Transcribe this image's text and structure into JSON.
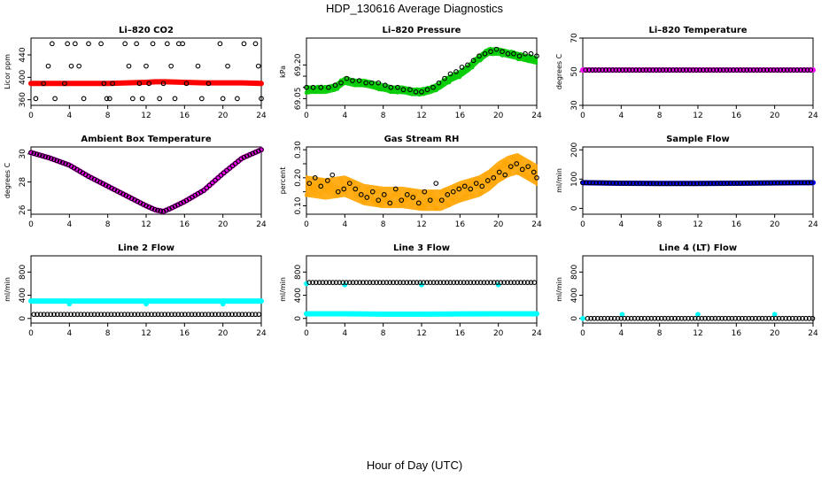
{
  "page": {
    "title": "HDP_130616  Average Diagnostics",
    "xlabel": "Hour of Day (UTC)"
  },
  "colors": {
    "black": "#000000",
    "red": "#ff0000",
    "green": "#00cc00",
    "magenta": "#ff00ff",
    "orange": "#ffa500",
    "blue": "#0000ff",
    "cyan": "#00ffff"
  },
  "chart_data": [
    {
      "type": "scatter",
      "title": "Li–820 CO2",
      "ylabel": "Licor ppm",
      "xlim": [
        0,
        24
      ],
      "ylim": [
        350,
        470
      ],
      "xticks": [
        0,
        4,
        8,
        12,
        16,
        20,
        24
      ],
      "yticks": [
        360,
        400,
        440
      ],
      "series": [
        {
          "color": "#ff0000",
          "style": "dense",
          "x": [
            0,
            2,
            4,
            6,
            8,
            10,
            12,
            13,
            14,
            16,
            18,
            20,
            22,
            24
          ],
          "y": [
            389,
            389,
            389,
            389,
            389,
            390,
            391,
            392,
            392,
            391,
            390,
            390,
            390,
            389
          ]
        },
        {
          "color": "#000000",
          "style": "circle",
          "x": [
            0.5,
            1.3,
            1.8,
            2.2,
            2.5,
            3.5,
            3.8,
            4.2,
            4.6,
            5.0,
            5.5,
            6.0,
            7.3,
            7.6,
            7.9,
            8.2,
            8.5,
            9.8,
            10.2,
            10.6,
            11.0,
            11.3,
            11.6,
            12.0,
            12.3,
            12.7,
            13.4,
            13.8,
            14.2,
            14.6,
            15.0,
            15.4,
            15.8,
            16.2,
            17.4,
            17.8,
            18.5,
            19.7,
            20.0,
            20.5,
            21.5,
            22.2,
            23.4,
            23.7,
            24.0
          ],
          "y": [
            362,
            389,
            420,
            460,
            362,
            389,
            460,
            420,
            460,
            420,
            362,
            460,
            460,
            389,
            362,
            362,
            389,
            460,
            420,
            362,
            460,
            389,
            362,
            420,
            389,
            460,
            362,
            389,
            460,
            420,
            362,
            460,
            460,
            389,
            420,
            362,
            389,
            460,
            362,
            420,
            362,
            460,
            460,
            420,
            362
          ]
        }
      ]
    },
    {
      "type": "scatter",
      "title": "Li–820 Pressure",
      "ylabel": "kPa",
      "xlim": [
        0,
        24
      ],
      "ylim": [
        69.02,
        69.32
      ],
      "xticks": [
        0,
        4,
        8,
        12,
        16,
        20,
        24
      ],
      "yticks": [
        69.05,
        69.1,
        69.15,
        69.2
      ],
      "ytickLabels": [
        "69.05",
        "",
        "",
        "69.20"
      ],
      "series": [
        {
          "color": "#00cc00",
          "style": "band",
          "width": 0.03,
          "x": [
            0,
            1,
            2,
            3,
            4,
            5,
            6,
            7,
            8,
            9,
            10,
            11,
            12,
            13,
            14,
            15,
            16,
            17,
            18,
            19,
            20,
            21,
            22,
            23,
            24
          ],
          "y": [
            69.09,
            69.09,
            69.09,
            69.1,
            69.13,
            69.12,
            69.12,
            69.11,
            69.1,
            69.09,
            69.09,
            69.08,
            69.08,
            69.09,
            69.11,
            69.14,
            69.16,
            69.19,
            69.23,
            69.26,
            69.26,
            69.25,
            69.24,
            69.23,
            69.22
          ]
        },
        {
          "color": "#000000",
          "style": "circle",
          "x": [
            0,
            0.7,
            1.5,
            2.3,
            3.0,
            3.6,
            4.2,
            4.8,
            5.5,
            6.2,
            6.8,
            7.5,
            8.2,
            8.8,
            9.5,
            10.1,
            10.8,
            11.4,
            12.0,
            12.6,
            13.2,
            13.8,
            14.4,
            15.0,
            15.6,
            16.2,
            16.8,
            17.4,
            18.0,
            18.6,
            19.2,
            19.8,
            20.4,
            21.0,
            21.6,
            22.2,
            22.8,
            23.4,
            24.0
          ],
          "y": [
            69.1,
            69.1,
            69.1,
            69.1,
            69.11,
            69.12,
            69.14,
            69.13,
            69.13,
            69.12,
            69.12,
            69.12,
            69.11,
            69.1,
            69.1,
            69.09,
            69.09,
            69.08,
            69.08,
            69.09,
            69.1,
            69.12,
            69.14,
            69.16,
            69.17,
            69.19,
            69.2,
            69.22,
            69.24,
            69.25,
            69.26,
            69.27,
            69.26,
            69.25,
            69.25,
            69.24,
            69.25,
            69.25,
            69.24
          ]
        }
      ]
    },
    {
      "type": "scatter",
      "title": "Li–820 Temperature",
      "ylabel": "degrees C",
      "xlim": [
        0,
        24
      ],
      "ylim": [
        30,
        70
      ],
      "xticks": [
        0,
        4,
        8,
        12,
        16,
        20,
        24
      ],
      "yticks": [
        30,
        50,
        70
      ],
      "series": [
        {
          "color": "#ff00ff",
          "style": "dense",
          "x": [
            0,
            4,
            8,
            12,
            16,
            20,
            24
          ],
          "y": [
            51,
            51,
            51,
            51,
            51,
            51,
            51
          ]
        },
        {
          "color": "#000000",
          "style": "circle",
          "every": 0.35,
          "x": [
            0.3,
            24
          ],
          "y": [
            51,
            51
          ]
        }
      ]
    },
    {
      "type": "scatter",
      "title": "Ambient Box Temperature",
      "ylabel": "degrees C",
      "xlim": [
        0,
        24
      ],
      "ylim": [
        25.7,
        30.5
      ],
      "xticks": [
        0,
        4,
        8,
        12,
        16,
        20,
        24
      ],
      "yticks": [
        26,
        28,
        30
      ],
      "series": [
        {
          "color": "#ff00ff",
          "style": "dense",
          "x": [
            0,
            2,
            4,
            6,
            8,
            10,
            12,
            13,
            13.8,
            14.5,
            16,
            18,
            20,
            22,
            24
          ],
          "y": [
            30.1,
            29.7,
            29.2,
            28.4,
            27.7,
            27.0,
            26.3,
            26.0,
            25.9,
            26.1,
            26.6,
            27.4,
            28.6,
            29.7,
            30.3
          ]
        },
        {
          "color": "#000000",
          "style": "circle",
          "every": 0.3,
          "x": [
            0,
            2,
            4,
            6,
            8,
            10,
            12,
            13,
            13.8,
            14.5,
            16,
            18,
            20,
            22,
            24
          ],
          "y": [
            30.1,
            29.7,
            29.2,
            28.4,
            27.7,
            27.0,
            26.3,
            26.0,
            25.9,
            26.1,
            26.6,
            27.4,
            28.6,
            29.7,
            30.3
          ]
        }
      ]
    },
    {
      "type": "scatter",
      "title": "Gas Stream RH",
      "ylabel": "percent",
      "xlim": [
        0,
        24
      ],
      "ylim": [
        0.07,
        0.31
      ],
      "xticks": [
        0,
        4,
        8,
        12,
        16,
        20,
        24
      ],
      "yticks": [
        0.1,
        0.15,
        0.2,
        0.25,
        0.3
      ],
      "ytickLabels": [
        "0.10",
        "",
        "0.20",
        "",
        "0.30"
      ],
      "series": [
        {
          "color": "#ffa500",
          "style": "band",
          "width": 0.07,
          "x": [
            0,
            2,
            4,
            6,
            8,
            10,
            12,
            14,
            16,
            18,
            19,
            20,
            21,
            22,
            23,
            24
          ],
          "y": [
            0.17,
            0.16,
            0.17,
            0.14,
            0.13,
            0.13,
            0.12,
            0.12,
            0.15,
            0.17,
            0.19,
            0.22,
            0.24,
            0.25,
            0.23,
            0.21
          ]
        },
        {
          "color": "#000000",
          "style": "circle",
          "x": [
            0.3,
            0.9,
            1.5,
            2.2,
            2.7,
            3.3,
            3.9,
            4.5,
            5.1,
            5.7,
            6.3,
            6.9,
            7.5,
            8.1,
            8.7,
            9.3,
            9.9,
            10.5,
            11.1,
            11.7,
            12.3,
            12.9,
            13.5,
            14.1,
            14.7,
            15.3,
            15.9,
            16.5,
            17.1,
            17.7,
            18.3,
            18.9,
            19.5,
            20.1,
            20.7,
            21.3,
            21.9,
            22.5,
            23.1,
            23.7,
            24.0
          ],
          "y": [
            0.18,
            0.2,
            0.17,
            0.19,
            0.21,
            0.15,
            0.16,
            0.18,
            0.16,
            0.14,
            0.13,
            0.15,
            0.12,
            0.14,
            0.11,
            0.16,
            0.12,
            0.14,
            0.13,
            0.11,
            0.15,
            0.12,
            0.18,
            0.12,
            0.14,
            0.15,
            0.16,
            0.17,
            0.16,
            0.18,
            0.17,
            0.19,
            0.2,
            0.22,
            0.21,
            0.24,
            0.25,
            0.23,
            0.24,
            0.22,
            0.2
          ]
        }
      ]
    },
    {
      "type": "scatter",
      "title": "Sample Flow",
      "ylabel": "ml/min",
      "xlim": [
        0,
        24
      ],
      "ylim": [
        -20,
        210
      ],
      "xticks": [
        0,
        4,
        8,
        12,
        16,
        20,
        24
      ],
      "yticks": [
        0,
        100,
        200
      ],
      "series": [
        {
          "color": "#0000ff",
          "style": "dense",
          "x": [
            0,
            4,
            8,
            12,
            16,
            20,
            24
          ],
          "y": [
            88,
            86,
            85,
            85,
            86,
            87,
            88
          ]
        },
        {
          "color": "#000000",
          "style": "circle",
          "every": 0.35,
          "x": [
            0,
            4,
            8,
            12,
            16,
            20,
            24
          ],
          "y": [
            88,
            86,
            85,
            85,
            86,
            87,
            88
          ]
        }
      ]
    },
    {
      "type": "scatter",
      "title": "Line 2 Flow",
      "ylabel": "ml/min",
      "xlim": [
        0,
        24
      ],
      "ylim": [
        -80,
        1080
      ],
      "xticks": [
        0,
        4,
        8,
        12,
        16,
        20,
        24
      ],
      "yticks": [
        0,
        400,
        800
      ],
      "series": [
        {
          "color": "#00ffff",
          "style": "dense",
          "x": [
            0,
            4,
            8,
            12,
            16,
            20,
            24
          ],
          "y": [
            300,
            300,
            300,
            300,
            300,
            300,
            300
          ]
        },
        {
          "color": "#00ffff",
          "style": "circle",
          "x": [
            4.0,
            12.0,
            20.0
          ],
          "y": [
            250,
            250,
            250
          ]
        },
        {
          "color": "#000000",
          "style": "circle",
          "every": 0.35,
          "x": [
            0.3,
            24
          ],
          "y": [
            70,
            70
          ]
        }
      ]
    },
    {
      "type": "scatter",
      "title": "Line 3 Flow",
      "ylabel": "ml/min",
      "xlim": [
        0,
        24
      ],
      "ylim": [
        -80,
        1080
      ],
      "xticks": [
        0,
        4,
        8,
        12,
        16,
        20,
        24
      ],
      "yticks": [
        0,
        400,
        800
      ],
      "series": [
        {
          "color": "#00ffff",
          "style": "dense",
          "x": [
            0,
            4,
            8,
            12,
            16,
            20,
            24
          ],
          "y": [
            80,
            80,
            75,
            75,
            78,
            80,
            80
          ]
        },
        {
          "color": "#00ffff",
          "style": "circle",
          "x": [
            0.0,
            4.0,
            12.0,
            20.0
          ],
          "y": [
            600,
            580,
            580,
            580
          ]
        },
        {
          "color": "#000000",
          "style": "circle",
          "every": 0.35,
          "x": [
            0.3,
            24
          ],
          "y": [
            620,
            620
          ]
        }
      ]
    },
    {
      "type": "scatter",
      "title": "Line 4 (LT) Flow",
      "ylabel": "ml/min",
      "xlim": [
        0,
        24
      ],
      "ylim": [
        -80,
        1080
      ],
      "xticks": [
        0,
        4,
        8,
        12,
        16,
        20,
        24
      ],
      "yticks": [
        0,
        400,
        800
      ],
      "series": [
        {
          "color": "#00ffff",
          "style": "circle",
          "x": [
            0.0,
            4.1,
            12.0,
            20.0
          ],
          "y": [
            0,
            70,
            70,
            70
          ]
        },
        {
          "color": "#000000",
          "style": "circle",
          "every": 0.35,
          "x": [
            0.5,
            24
          ],
          "y": [
            0,
            0
          ]
        }
      ]
    }
  ]
}
